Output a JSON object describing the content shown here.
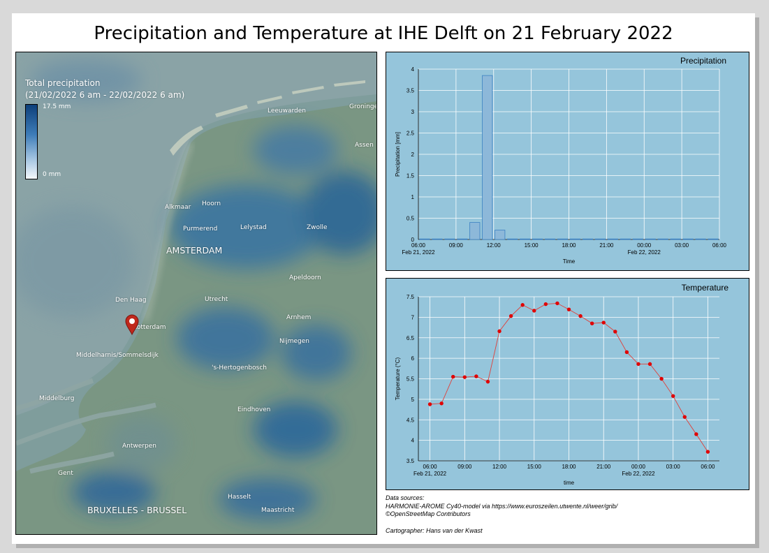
{
  "title": "Precipitation and Temperature at IHE Delft on 21 February 2022",
  "legend": {
    "title_line1": "Total precipitation",
    "title_line2": "(21/02/2022 6 am - 22/02/2022 6 am)",
    "max_label": "17.5 mm",
    "min_label": "0 mm"
  },
  "map": {
    "marker_icon": "location-pin-icon",
    "places": {
      "leeuwarden": "Leeuwarden",
      "groningen": "Groningen",
      "assen": "Assen",
      "alkmaar": "Alkmaar",
      "hoorn": "Hoorn",
      "purmerend": "Purmerend",
      "lelystad": "Lelystad",
      "zwolle": "Zwolle",
      "amsterdam": "AMSTERDAM",
      "apeldoorn": "Apeldoorn",
      "den_haag": "Den Haag",
      "utrecht": "Utrecht",
      "arnhem": "Arnhem",
      "rotterdam": "Rotterdam",
      "nijmegen": "Nijmegen",
      "middelharnis": "Middelharnis/Sommelsdijk",
      "den_bosch": "'s-Hertogenbosch",
      "middelburg": "Middelburg",
      "eindhoven": "Eindhoven",
      "antwerpen": "Antwerpen",
      "gent": "Gent",
      "hasselt": "Hasselt",
      "bruxelles": "BRUXELLES - BRUSSEL",
      "maastricht": "Maastricht"
    }
  },
  "chart_data": [
    {
      "type": "bar",
      "title": "Precipitation",
      "xlabel": "Time",
      "ylabel": "Precipitation [mm]",
      "ylim": [
        0,
        4
      ],
      "yticks": [
        "0",
        "0.5",
        "1",
        "1.5",
        "2",
        "2.5",
        "3",
        "3.5",
        "4"
      ],
      "xticks": [
        "06:00",
        "09:00",
        "12:00",
        "15:00",
        "18:00",
        "21:00",
        "00:00",
        "03:00",
        "06:00"
      ],
      "date_labels": [
        "Feb 21, 2022",
        "Feb 22, 2022"
      ],
      "hours": [
        6,
        7,
        8,
        9,
        10,
        11,
        12,
        13,
        14,
        15,
        16,
        17,
        18,
        19,
        20,
        21,
        22,
        23,
        24,
        25,
        26,
        27,
        28,
        29
      ],
      "values": [
        0,
        0,
        0,
        0,
        0.4,
        3.85,
        0.22,
        0.01,
        0,
        0,
        0,
        0,
        0,
        0,
        0,
        0,
        0,
        0,
        0,
        0,
        0,
        0,
        0,
        0
      ]
    },
    {
      "type": "line",
      "title": "Temperature",
      "xlabel": "time",
      "ylabel": "Temperature (°C)",
      "ylim": [
        3.5,
        7.5
      ],
      "yticks": [
        "3.5",
        "4",
        "4.5",
        "5",
        "5.5",
        "6",
        "6.5",
        "7",
        "7.5"
      ],
      "xticks": [
        "06:00",
        "09:00",
        "12:00",
        "15:00",
        "18:00",
        "21:00",
        "00:00",
        "03:00",
        "06:00"
      ],
      "date_labels": [
        "Feb 21, 2022",
        "Feb 22, 2022"
      ],
      "hours": [
        6,
        7,
        8,
        9,
        10,
        11,
        12,
        13,
        14,
        15,
        16,
        17,
        18,
        19,
        20,
        21,
        22,
        23,
        24,
        25,
        26,
        27,
        28,
        29,
        30
      ],
      "values": [
        4.88,
        4.9,
        5.55,
        5.54,
        5.56,
        5.43,
        6.66,
        7.03,
        7.3,
        7.16,
        7.32,
        7.34,
        7.19,
        7.03,
        6.85,
        6.87,
        6.65,
        6.15,
        5.86,
        5.86,
        5.5,
        5.08,
        4.57,
        4.15,
        3.72
      ]
    }
  ],
  "sources": {
    "heading": "Data sources:",
    "line1": "HARMONIE-AROME Cy40-model via https://www.euroszeilen.utwente.nl/weer/grib/",
    "line2": "©OpenStreetMap Contributors"
  },
  "cartographer": "Cartographer: Hans van der Kwast",
  "colors": {
    "chart_bg": "#95c5db",
    "bar_fill": "#8db8d9",
    "bar_stroke": "#3b80c2",
    "temp_line": "#e0403a",
    "temp_point": "#e00000",
    "marker": "#c0281c"
  }
}
